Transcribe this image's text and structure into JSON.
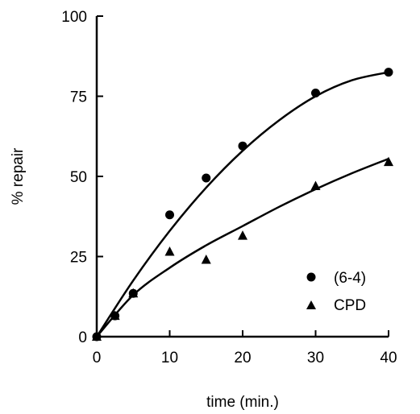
{
  "chart_data": {
    "type": "scatter",
    "title": "",
    "xlabel": "time (min.)",
    "ylabel": "% repair",
    "xlim": [
      0,
      40
    ],
    "ylim": [
      0,
      100
    ],
    "x_ticks": [
      "0",
      "10",
      "20",
      "30",
      "40"
    ],
    "y_ticks": [
      "0",
      "25",
      "50",
      "75",
      "100"
    ],
    "grid": false,
    "legend_position": "bottom-right",
    "series": [
      {
        "name": "(6-4)",
        "marker": "circle",
        "points": [
          [
            0,
            0
          ],
          [
            2.5,
            6.5
          ],
          [
            5,
            13.5
          ],
          [
            10,
            38
          ],
          [
            15,
            49.5
          ],
          [
            20,
            59.5
          ],
          [
            30,
            76
          ],
          [
            40,
            82.5
          ]
        ],
        "fit": [
          [
            0,
            0
          ],
          [
            5,
            17.5
          ],
          [
            10,
            33
          ],
          [
            15,
            46.5
          ],
          [
            20,
            58
          ],
          [
            25,
            67.5
          ],
          [
            30,
            75
          ],
          [
            35,
            80
          ],
          [
            40,
            82.5
          ]
        ]
      },
      {
        "name": "CPD",
        "marker": "triangle",
        "points": [
          [
            0,
            0
          ],
          [
            2.5,
            6.5
          ],
          [
            5,
            13.5
          ],
          [
            10,
            26.5
          ],
          [
            15,
            24
          ],
          [
            20,
            31.5
          ],
          [
            30,
            47
          ],
          [
            40,
            54.5
          ]
        ],
        "fit": [
          [
            0,
            0
          ],
          [
            5,
            13
          ],
          [
            10,
            21.5
          ],
          [
            15,
            28.5
          ],
          [
            20,
            34.5
          ],
          [
            25,
            40.5
          ],
          [
            30,
            46
          ],
          [
            35,
            51
          ],
          [
            40,
            55.5
          ]
        ]
      }
    ]
  }
}
